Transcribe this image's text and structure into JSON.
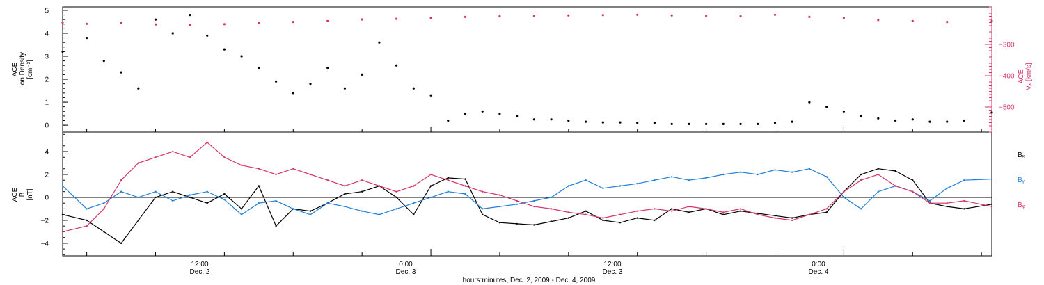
{
  "colors": {
    "black": "#000000",
    "pink": "#d6336a",
    "blue": "#1e7fd6"
  },
  "footer": {
    "xlabel": "hours:minutes, Dec.  2, 2009 - Dec.  4, 2009",
    "ticks": [
      {
        "time": "12:00",
        "date": "Dec. 2"
      },
      {
        "time": "0:00",
        "date": "Dec. 3"
      },
      {
        "time": "12:00",
        "date": "Dec. 3"
      },
      {
        "time": "0:00",
        "date": "Dec. 4"
      }
    ]
  },
  "chart_data": [
    {
      "type": "scatter",
      "x_unit": "hours since Dec. 2 0:00",
      "xlim": [
        1.3,
        28.3
      ],
      "ylim_left": [
        -0.3,
        5.15
      ],
      "ylim_right": [
        -580,
        -180
      ],
      "left_axis": {
        "label_lines": [
          "ACE",
          "Ion Density",
          "[cm⁻³]"
        ],
        "ticks": [
          0,
          1,
          2,
          3,
          4,
          5
        ]
      },
      "right_axis": {
        "label_lines": [
          "ACE",
          "Vₓ [km/s]"
        ],
        "ticks": [
          -300,
          -400,
          -500
        ]
      },
      "series": [
        {
          "axis": "left",
          "color": "#000000",
          "x": [
            1.3,
            2.0,
            2.5,
            3.0,
            3.5,
            4.0,
            4.5,
            5.0,
            5.5,
            6.0,
            6.5,
            7.0,
            7.5,
            8.0,
            8.5,
            9.0,
            9.5,
            10.0,
            10.5,
            11.0,
            11.5,
            12.0,
            12.5,
            13.0,
            13.5,
            14.0,
            14.5,
            15.0,
            15.5,
            16.0,
            16.5,
            17.0,
            17.5,
            18.0,
            18.5,
            19.0,
            19.5,
            20.0,
            20.5,
            21.0,
            21.5,
            22.0,
            22.5,
            23.0,
            23.5,
            24.0,
            24.5,
            25.0,
            25.5,
            26.0,
            26.5,
            27.0,
            27.5,
            28.3
          ],
          "y": [
            3.2,
            3.8,
            2.8,
            2.3,
            1.6,
            4.6,
            4.0,
            4.8,
            3.9,
            3.3,
            3.0,
            2.5,
            1.9,
            1.4,
            1.8,
            2.5,
            1.6,
            2.2,
            3.6,
            2.6,
            1.6,
            1.3,
            0.2,
            0.5,
            0.6,
            0.5,
            0.4,
            0.25,
            0.25,
            0.2,
            0.15,
            0.12,
            0.12,
            0.1,
            0.1,
            0.05,
            0.05,
            0.05,
            0.05,
            0.05,
            0.05,
            0.1,
            0.15,
            1.0,
            0.8,
            0.6,
            0.4,
            0.3,
            0.2,
            0.25,
            0.15,
            0.15,
            0.2,
            0.55
          ]
        },
        {
          "axis": "right",
          "color": "#d6336a",
          "x": [
            1.3,
            2.0,
            3.0,
            4.0,
            5.0,
            6.0,
            7.0,
            8.0,
            9.0,
            10.0,
            11.0,
            12.0,
            13.0,
            14.0,
            15.0,
            16.0,
            17.0,
            18.0,
            19.0,
            20.0,
            21.0,
            22.0,
            23.0,
            24.0,
            25.0,
            26.0,
            27.0,
            28.3
          ],
          "y": [
            -230,
            -234,
            -230,
            -236,
            -237,
            -235,
            -232,
            -228,
            -225,
            -220,
            -218,
            -215,
            -212,
            -210,
            -208,
            -207,
            -206,
            -205,
            -207,
            -208,
            -210,
            -205,
            -212,
            -215,
            -222,
            -225,
            -228,
            -225
          ]
        }
      ]
    },
    {
      "type": "line",
      "x_unit": "hours since Dec. 2 0:00",
      "xlim": [
        1.3,
        28.3
      ],
      "ylim": [
        -5.1,
        5.7
      ],
      "y_axis": {
        "label_lines": [
          "ACE",
          "B",
          "[nT]"
        ],
        "ticks": [
          -4,
          -2,
          0,
          2,
          4
        ]
      },
      "zero_line": 0,
      "legend_position": "right",
      "series": [
        {
          "name": "Bₓ",
          "color": "#000000",
          "x": [
            1.3,
            2.0,
            2.5,
            3.0,
            3.5,
            4.0,
            4.5,
            5.0,
            5.5,
            6.0,
            6.5,
            7.0,
            7.5,
            8.0,
            8.5,
            9.0,
            9.5,
            10.0,
            10.5,
            11.0,
            11.5,
            12.0,
            12.5,
            13.0,
            13.5,
            14.0,
            14.5,
            15.0,
            15.5,
            16.0,
            16.5,
            17.0,
            17.5,
            18.0,
            18.5,
            19.0,
            19.5,
            20.0,
            20.5,
            21.0,
            21.5,
            22.0,
            22.5,
            23.0,
            23.5,
            24.0,
            24.5,
            25.0,
            25.5,
            26.0,
            26.5,
            27.0,
            27.5,
            28.3
          ],
          "y": [
            -1.5,
            -2.0,
            -3.0,
            -4.0,
            -2.0,
            0.0,
            0.5,
            0.0,
            -0.5,
            0.3,
            -1.0,
            1.0,
            -2.5,
            -1.0,
            -1.2,
            -0.5,
            0.3,
            0.5,
            1.0,
            0.0,
            -1.5,
            1.0,
            1.7,
            1.6,
            -1.5,
            -2.2,
            -2.3,
            -2.4,
            -2.1,
            -1.8,
            -1.2,
            -2.0,
            -2.2,
            -1.8,
            -2.0,
            -1.0,
            -1.3,
            -1.0,
            -1.5,
            -1.2,
            -1.4,
            -1.6,
            -1.8,
            -1.5,
            -1.3,
            0.5,
            2.0,
            2.5,
            2.3,
            1.5,
            -0.5,
            -0.8,
            -1.0,
            -0.6
          ]
        },
        {
          "name": "Bᵧ",
          "color": "#1e7fd6",
          "x": [
            1.3,
            2.0,
            2.5,
            3.0,
            3.5,
            4.0,
            4.5,
            5.0,
            5.5,
            6.0,
            6.5,
            7.0,
            7.5,
            8.0,
            8.5,
            9.0,
            9.5,
            10.0,
            10.5,
            11.0,
            11.5,
            12.0,
            12.5,
            13.0,
            13.5,
            14.0,
            14.5,
            15.0,
            15.5,
            16.0,
            16.5,
            17.0,
            17.5,
            18.0,
            18.5,
            19.0,
            19.5,
            20.0,
            20.5,
            21.0,
            21.5,
            22.0,
            22.5,
            23.0,
            23.5,
            24.0,
            24.5,
            25.0,
            25.5,
            26.0,
            26.5,
            27.0,
            27.5,
            28.3
          ],
          "y": [
            1.0,
            -1.0,
            -0.5,
            0.5,
            0.0,
            0.5,
            -0.3,
            0.2,
            0.5,
            -0.2,
            -1.5,
            -0.5,
            -0.3,
            -1.0,
            -1.5,
            -0.5,
            -0.8,
            -1.2,
            -1.5,
            -1.0,
            -0.5,
            0.0,
            0.5,
            0.3,
            -1.0,
            -0.8,
            -0.6,
            -0.3,
            0.0,
            1.0,
            1.5,
            0.8,
            1.0,
            1.2,
            1.5,
            1.8,
            1.5,
            1.7,
            2.0,
            2.2,
            2.0,
            2.4,
            2.2,
            2.5,
            1.8,
            0.0,
            -1.0,
            0.5,
            1.0,
            0.5,
            -0.3,
            0.8,
            1.5,
            1.6
          ]
        },
        {
          "name": "Bᵩ",
          "color": "#d6336a",
          "x": [
            1.3,
            2.0,
            2.5,
            3.0,
            3.5,
            4.0,
            4.5,
            5.0,
            5.5,
            6.0,
            6.5,
            7.0,
            7.5,
            8.0,
            8.5,
            9.0,
            9.5,
            10.0,
            10.5,
            11.0,
            11.5,
            12.0,
            12.5,
            13.0,
            13.5,
            14.0,
            14.5,
            15.0,
            15.5,
            16.0,
            16.5,
            17.0,
            17.5,
            18.0,
            18.5,
            19.0,
            19.5,
            20.0,
            20.5,
            21.0,
            21.5,
            22.0,
            22.5,
            23.0,
            23.5,
            24.0,
            24.5,
            25.0,
            25.5,
            26.0,
            26.5,
            27.0,
            27.5,
            28.3
          ],
          "y": [
            -3.0,
            -2.5,
            -1.0,
            1.5,
            3.0,
            3.5,
            4.0,
            3.5,
            4.8,
            3.5,
            2.8,
            2.5,
            2.0,
            2.5,
            2.0,
            1.5,
            1.0,
            1.5,
            1.0,
            0.5,
            1.0,
            2.0,
            1.5,
            1.0,
            0.5,
            0.2,
            -0.3,
            -0.8,
            -1.0,
            -1.3,
            -1.5,
            -1.8,
            -1.5,
            -1.2,
            -1.0,
            -1.2,
            -0.8,
            -1.0,
            -1.3,
            -1.0,
            -1.5,
            -1.8,
            -2.0,
            -1.5,
            -1.0,
            0.5,
            1.5,
            2.0,
            1.0,
            0.5,
            -0.5,
            -0.5,
            -0.3,
            -0.8
          ]
        }
      ]
    }
  ]
}
